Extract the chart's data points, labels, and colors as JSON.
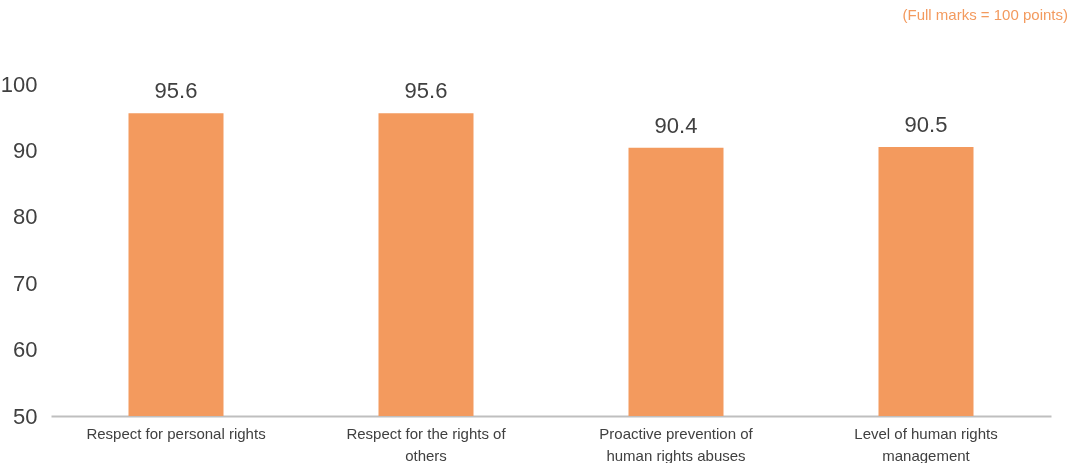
{
  "chart_data": {
    "type": "bar",
    "annotations": [
      "(Full marks = 100 points)"
    ],
    "categories": [
      "Respect for personal rights",
      "Respect for the rights of others",
      "Proactive prevention of human rights abuses",
      "Level of human rights management"
    ],
    "values": [
      95.6,
      95.6,
      90.4,
      90.5
    ],
    "color": "#f39a5e",
    "ylim": [
      50,
      100
    ],
    "yticks": [
      50,
      60,
      70,
      80,
      90,
      100
    ],
    "grid": false,
    "data_labels": true
  }
}
